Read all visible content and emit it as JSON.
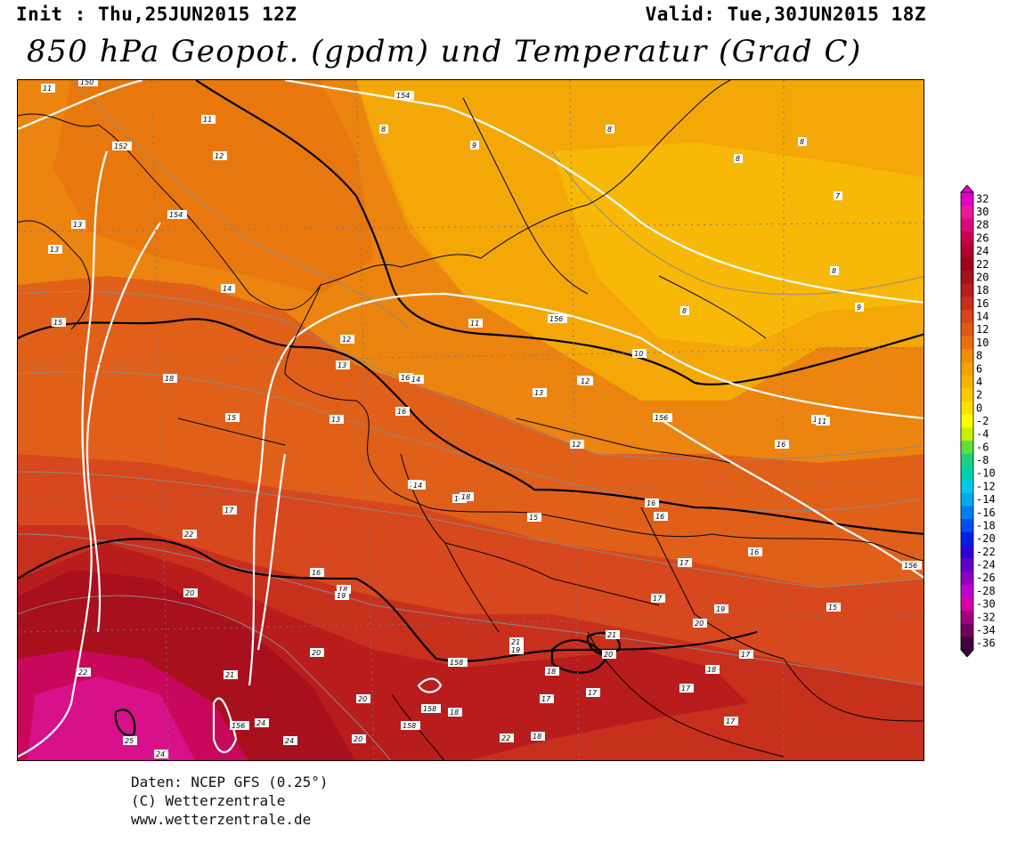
{
  "header": {
    "init": "Init : Thu,25JUN2015 12Z",
    "valid": "Valid: Tue,30JUN2015 18Z",
    "title": "850 hPa Geopot. (gpdm) und Temperatur (Grad C)"
  },
  "footer": {
    "line1": "Daten: NCEP GFS (0.25°)",
    "line2": "(C) Wetterzentrale",
    "line3": "www.wetterzentrale.de"
  },
  "legend": {
    "values": [
      "32",
      "30",
      "28",
      "26",
      "24",
      "22",
      "20",
      "18",
      "16",
      "14",
      "12",
      "10",
      "8",
      "6",
      "4",
      "2",
      "0",
      "-2",
      "-4",
      "-6",
      "-8",
      "-10",
      "-12",
      "-14",
      "-16",
      "-18",
      "-20",
      "-22",
      "-24",
      "-26",
      "-28",
      "-30",
      "-32",
      "-34",
      "-36"
    ],
    "colors": [
      "#e000c8",
      "#e61a9a",
      "#dc0a78",
      "#c8004f",
      "#b00030",
      "#a00020",
      "#a4121c",
      "#b81c1c",
      "#c8301e",
      "#d8441c",
      "#e05a14",
      "#e6700e",
      "#f08a08",
      "#f4a000",
      "#f8b400",
      "#fcc800",
      "#ffe000",
      "#ffff00",
      "#c8f000",
      "#60e040",
      "#20d080",
      "#00d0b0",
      "#00c8e8",
      "#00a8f0",
      "#0080f0",
      "#0050f0",
      "#0020e8",
      "#3000d8",
      "#6000c8",
      "#8c00c0",
      "#c000d0",
      "#d800a8",
      "#a0007c",
      "#700060",
      "#400040"
    ]
  },
  "map": {
    "temperature_labels": [
      "11",
      "11",
      "12",
      "13",
      "13",
      "14",
      "15",
      "18",
      "15",
      "17",
      "16",
      "18",
      "20",
      "22",
      "24",
      "25",
      "24",
      "8",
      "9",
      "8",
      "8",
      "8",
      "7",
      "8",
      "9",
      "8",
      "10",
      "11",
      "12",
      "11",
      "13",
      "14",
      "15",
      "16",
      "16",
      "13",
      "15",
      "16",
      "14",
      "16",
      "15",
      "17",
      "16",
      "15",
      "18",
      "19",
      "20",
      "21",
      "20",
      "21",
      "19",
      "18",
      "17",
      "17",
      "17",
      "17",
      "17",
      "18",
      "17",
      "18",
      "18",
      "19",
      "20",
      "21",
      "22",
      "22",
      "16",
      "12",
      "13",
      "12",
      "11",
      "16",
      "13",
      "14",
      "20",
      "20",
      "24"
    ],
    "geopotential_labels": [
      "150",
      "152",
      "154",
      "154",
      "156",
      "156",
      "156",
      "158",
      "158",
      "158",
      "156"
    ]
  }
}
